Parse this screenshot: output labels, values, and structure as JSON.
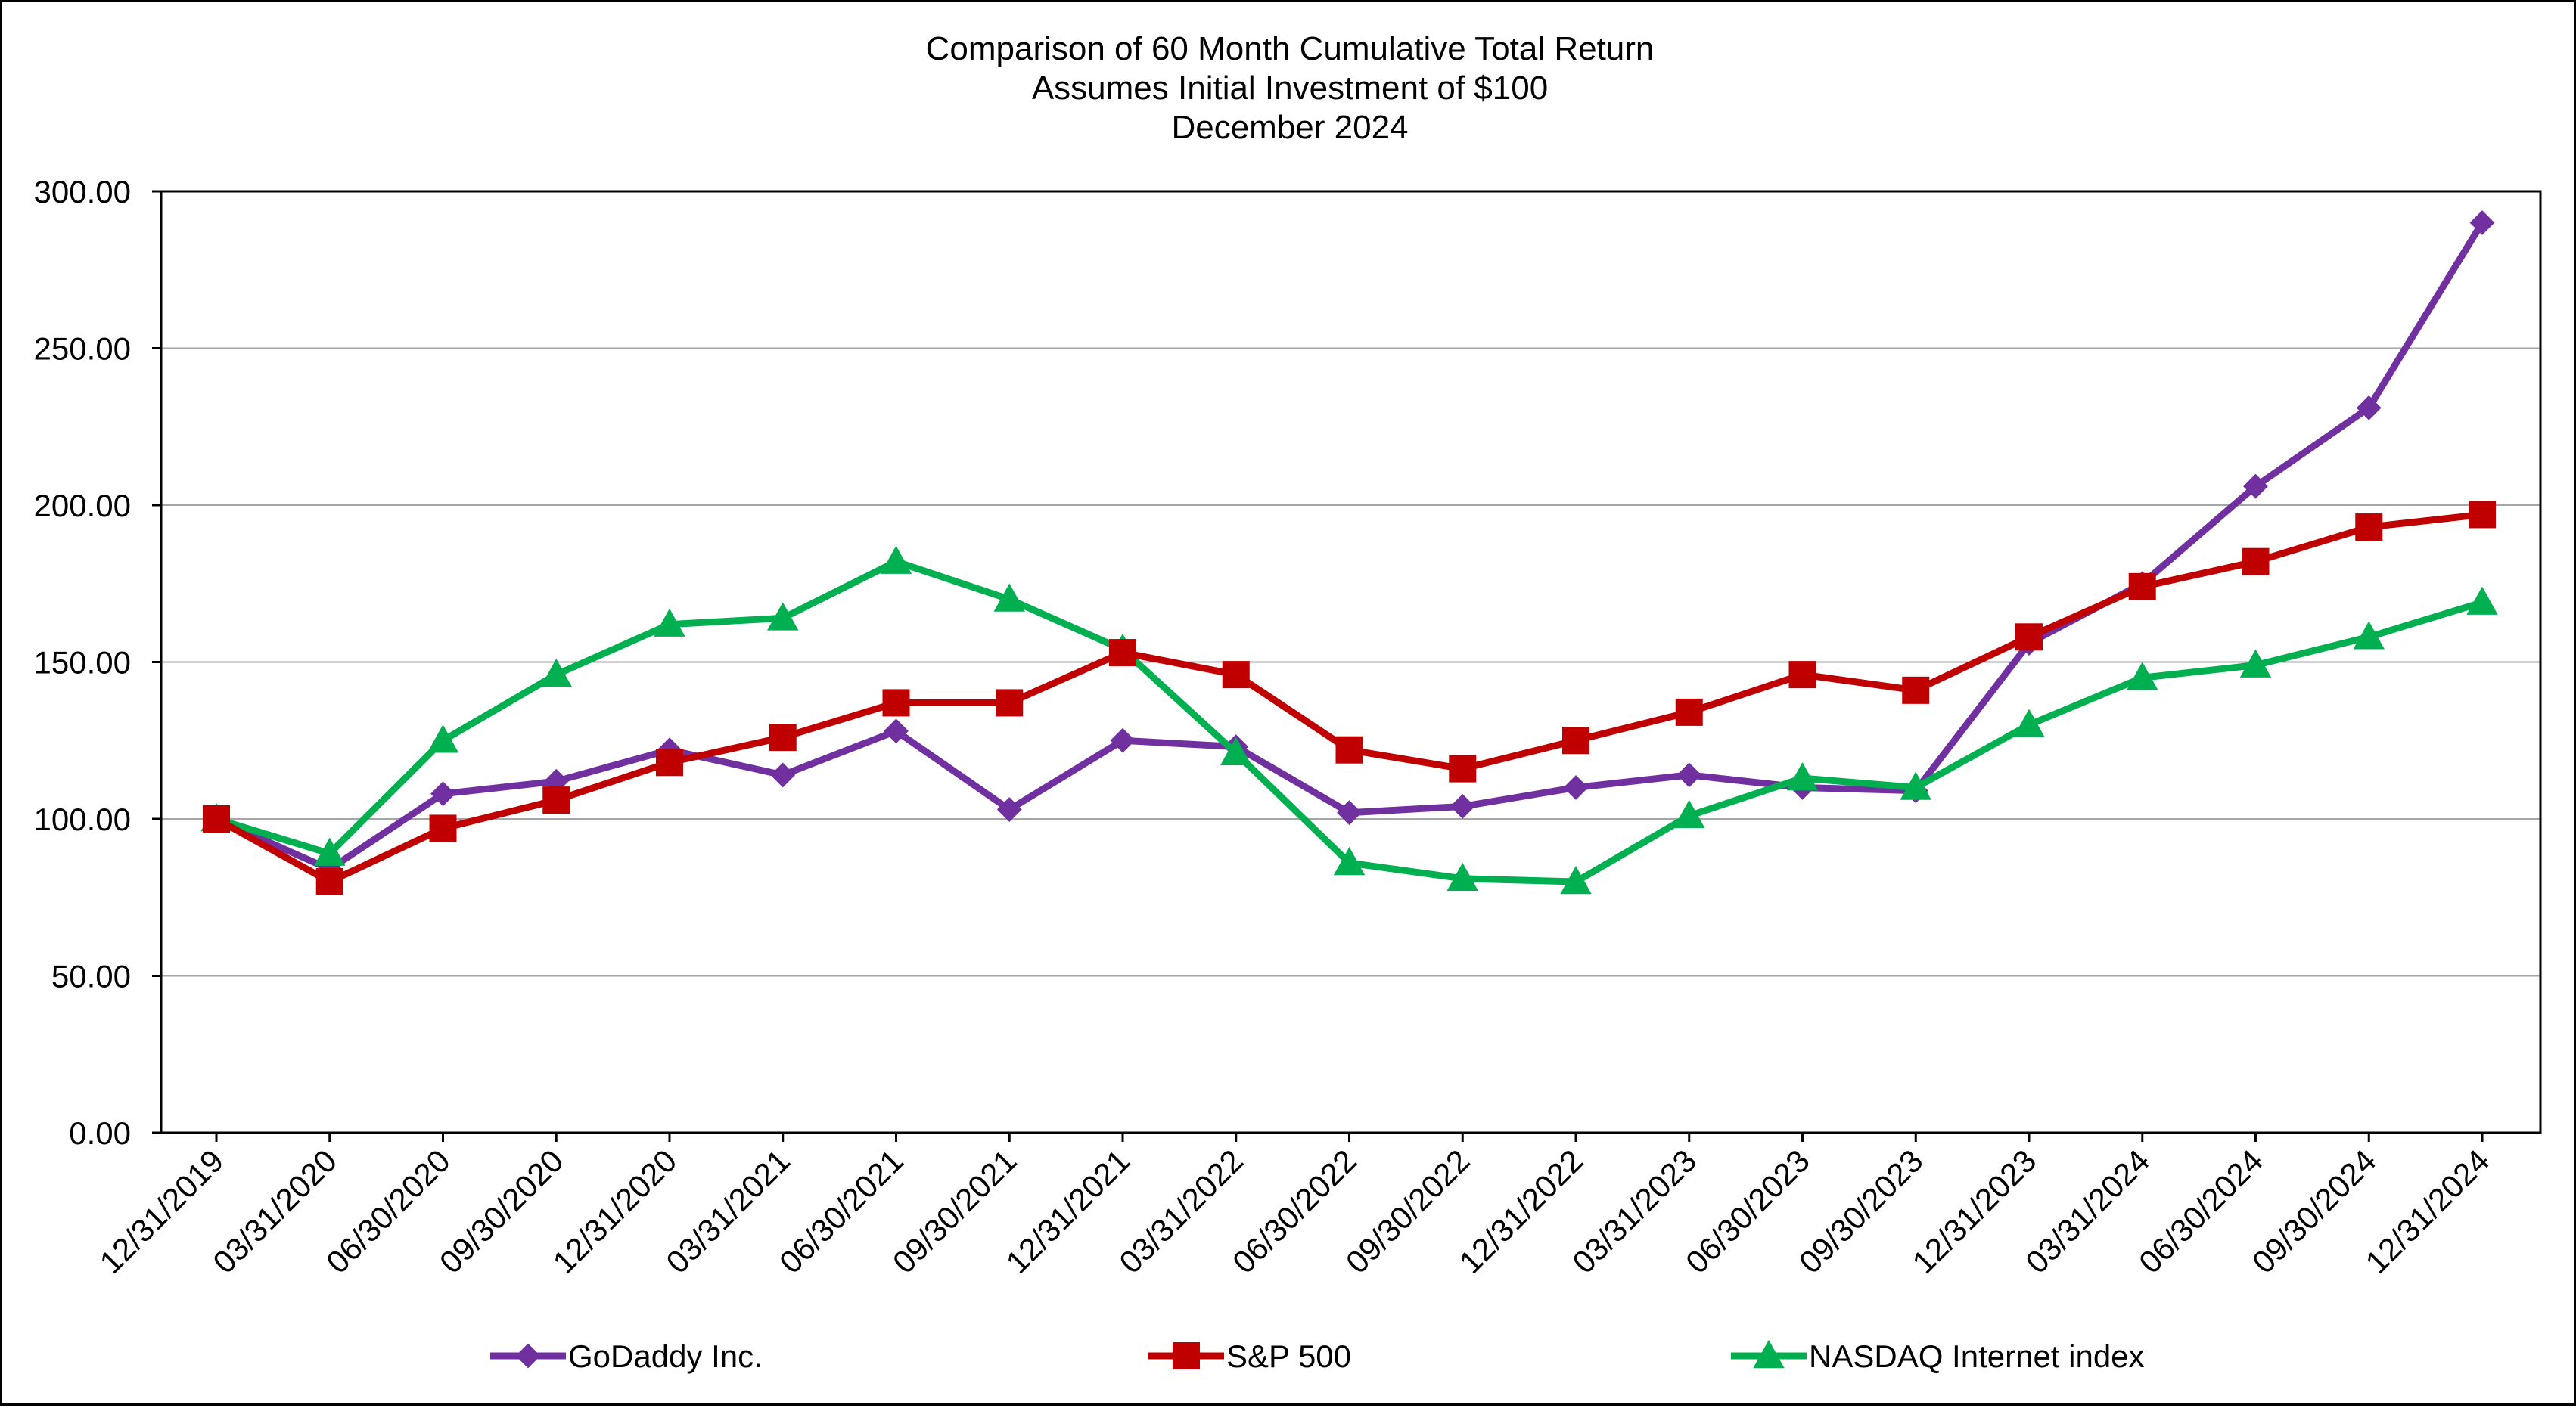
{
  "chart_data": {
    "type": "line",
    "title": [
      "Comparison of 60 Month Cumulative Total Return",
      "Assumes Initial Investment of $100",
      "December 2024"
    ],
    "xlabel": "",
    "ylabel": "",
    "ylim": [
      0,
      300
    ],
    "yticks": [
      "0.00",
      "50.00",
      "100.00",
      "150.00",
      "200.00",
      "250.00",
      "300.00"
    ],
    "grid": "horizontal",
    "legend_position": "bottom",
    "categories": [
      "12/31/2019",
      "03/31/2020",
      "06/30/2020",
      "09/30/2020",
      "12/31/2020",
      "03/31/2021",
      "06/30/2021",
      "09/30/2021",
      "12/31/2021",
      "03/31/2022",
      "06/30/2022",
      "09/30/2022",
      "12/31/2022",
      "03/31/2023",
      "06/30/2023",
      "09/30/2023",
      "12/31/2023",
      "03/31/2024",
      "06/30/2024",
      "09/30/2024",
      "12/31/2024"
    ],
    "series": [
      {
        "name": "GoDaddy Inc.",
        "color": "#7030A0",
        "marker": "diamond",
        "values": [
          100,
          84,
          108,
          112,
          122,
          114,
          128,
          103,
          125,
          123,
          102,
          104,
          110,
          114,
          110,
          109,
          156,
          175,
          206,
          231,
          290
        ]
      },
      {
        "name": "S&P 500",
        "color": "#C00000",
        "marker": "square",
        "values": [
          100,
          80,
          97,
          106,
          118,
          126,
          137,
          137,
          153,
          146,
          122,
          116,
          125,
          134,
          146,
          141,
          158,
          174,
          182,
          193,
          197
        ]
      },
      {
        "name": "NASDAQ Internet index",
        "color": "#00B050",
        "marker": "triangle",
        "values": [
          100,
          89,
          125,
          146,
          162,
          164,
          182,
          170,
          154,
          121,
          86,
          81,
          80,
          101,
          113,
          110,
          130,
          145,
          149,
          158,
          169
        ]
      }
    ]
  }
}
